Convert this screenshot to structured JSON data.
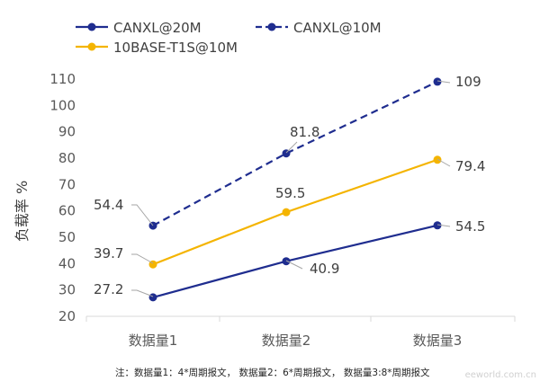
{
  "chart_data": {
    "type": "line",
    "categories": [
      "数据量1",
      "数据量2",
      "数据量3"
    ],
    "series": [
      {
        "name": "CANXL@20M",
        "values": [
          27.2,
          40.9,
          54.5
        ],
        "color": "#1f2d8f",
        "dash": false
      },
      {
        "name": "CANXL@10M",
        "values": [
          54.4,
          81.8,
          109
        ],
        "color": "#1f2d8f",
        "dash": true
      },
      {
        "name": "10BASE-T1S@10M",
        "values": [
          39.7,
          59.5,
          79.4
        ],
        "color": "#f4b400",
        "dash": false
      }
    ],
    "ylabel": "负载率 %",
    "xlabel": "",
    "ylim": [
      20,
      110
    ],
    "yticks": [
      20,
      30,
      40,
      50,
      60,
      70,
      80,
      90,
      100,
      110
    ],
    "grid": false,
    "legend_position": "top-left"
  },
  "footnote": "注：数据量1：4*周期报文，  数据量2：6*周期报文，  数据量3:8*周期报文",
  "watermark": "eeworld.com.cn"
}
